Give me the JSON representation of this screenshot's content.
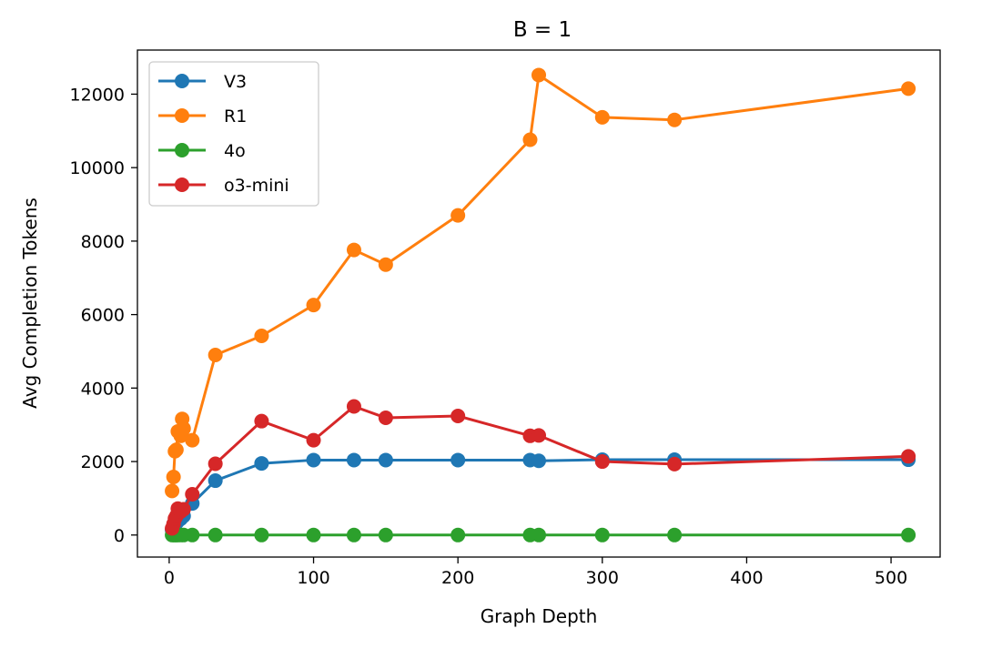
{
  "chart_data": {
    "type": "line",
    "title": "B = 1",
    "xlabel": "Graph Depth",
    "ylabel": "Avg Completion Tokens",
    "xlim": [
      -22,
      534
    ],
    "ylim": [
      -600,
      13200
    ],
    "xticks": [
      0,
      100,
      200,
      300,
      400,
      500
    ],
    "yticks": [
      0,
      2000,
      4000,
      6000,
      8000,
      10000,
      12000
    ],
    "legend_position": "upper-left",
    "grid": false,
    "series": [
      {
        "name": "V3",
        "color": "#1f77b4",
        "points": [
          [
            2,
            140
          ],
          [
            3,
            220
          ],
          [
            4,
            280
          ],
          [
            5,
            330
          ],
          [
            6,
            380
          ],
          [
            8,
            440
          ],
          [
            10,
            520
          ],
          [
            16,
            860
          ],
          [
            32,
            1480
          ],
          [
            64,
            1950
          ],
          [
            100,
            2040
          ],
          [
            128,
            2040
          ],
          [
            150,
            2040
          ],
          [
            200,
            2040
          ],
          [
            250,
            2040
          ],
          [
            256,
            2020
          ],
          [
            300,
            2050
          ],
          [
            350,
            2050
          ],
          [
            512,
            2050
          ]
        ]
      },
      {
        "name": "R1",
        "color": "#ff7f0e",
        "points": [
          [
            2,
            1200
          ],
          [
            3,
            1580
          ],
          [
            4,
            2280
          ],
          [
            5,
            2320
          ],
          [
            6,
            2820
          ],
          [
            8,
            2700
          ],
          [
            9,
            3160
          ],
          [
            10,
            2900
          ],
          [
            16,
            2580
          ],
          [
            32,
            4900
          ],
          [
            64,
            5420
          ],
          [
            100,
            6260
          ],
          [
            128,
            7760
          ],
          [
            150,
            7360
          ],
          [
            200,
            8700
          ],
          [
            250,
            10760
          ],
          [
            256,
            12520
          ],
          [
            300,
            11370
          ],
          [
            350,
            11300
          ],
          [
            512,
            12150
          ]
        ]
      },
      {
        "name": "4o",
        "color": "#2ca02c",
        "points": [
          [
            2,
            0
          ],
          [
            3,
            0
          ],
          [
            4,
            0
          ],
          [
            5,
            0
          ],
          [
            6,
            0
          ],
          [
            8,
            0
          ],
          [
            10,
            0
          ],
          [
            16,
            0
          ],
          [
            32,
            0
          ],
          [
            64,
            0
          ],
          [
            100,
            0
          ],
          [
            128,
            0
          ],
          [
            150,
            0
          ],
          [
            200,
            0
          ],
          [
            250,
            0
          ],
          [
            256,
            0
          ],
          [
            300,
            0
          ],
          [
            350,
            0
          ],
          [
            512,
            0
          ]
        ]
      },
      {
        "name": "o3-mini",
        "color": "#d62728",
        "points": [
          [
            2,
            180
          ],
          [
            3,
            300
          ],
          [
            4,
            450
          ],
          [
            5,
            520
          ],
          [
            6,
            720
          ],
          [
            8,
            640
          ],
          [
            10,
            700
          ],
          [
            16,
            1110
          ],
          [
            32,
            1940
          ],
          [
            64,
            3100
          ],
          [
            100,
            2580
          ],
          [
            128,
            3500
          ],
          [
            150,
            3190
          ],
          [
            200,
            3240
          ],
          [
            250,
            2700
          ],
          [
            256,
            2710
          ],
          [
            300,
            2000
          ],
          [
            350,
            1930
          ],
          [
            512,
            2140
          ]
        ]
      }
    ]
  }
}
